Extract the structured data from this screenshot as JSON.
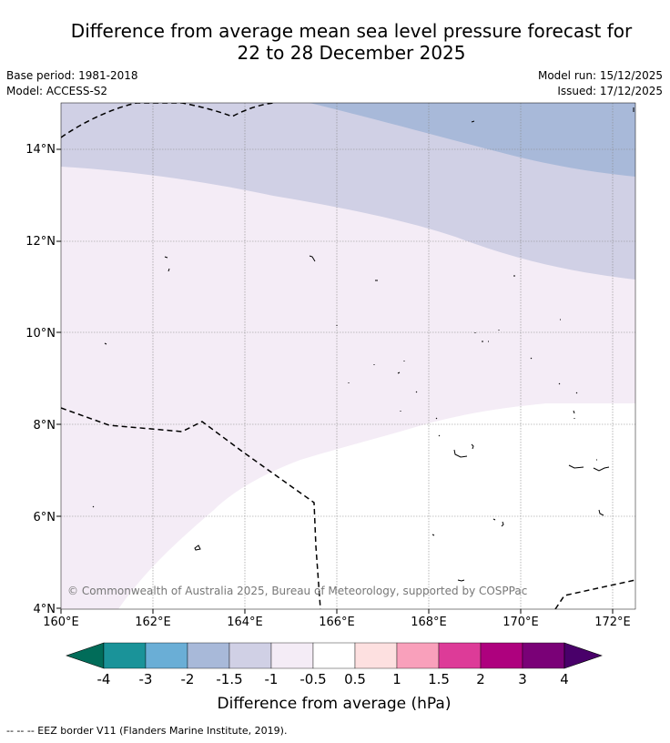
{
  "title": {
    "line1": "Difference from average mean sea level pressure forecast for",
    "line2": "22 to 28 December 2025"
  },
  "meta": {
    "base_period": "Base period: 1981-2018",
    "model": "Model: ACCESS-S2",
    "model_run": "Model run: 15/12/2025",
    "issued": "Issued: 17/12/2025"
  },
  "map": {
    "lat_labels": [
      "14°N",
      "12°N",
      "10°N",
      "8°N",
      "6°N",
      "4°N"
    ],
    "lon_labels": [
      "160°E",
      "162°E",
      "164°E",
      "166°E",
      "168°E",
      "170°E",
      "172°E"
    ],
    "extent": {
      "lon_min": 160,
      "lon_max": 172.5,
      "lat_min": 4,
      "lat_max": 15
    },
    "copyright": "© Commonwealth of Australia 2025, Bureau of Meteorology, supported by COSPPac"
  },
  "colorbar": {
    "ticks": [
      "-4",
      "-3",
      "-2",
      "-1.5",
      "-1",
      "-0.5",
      "0.5",
      "1",
      "1.5",
      "2",
      "3",
      "4"
    ],
    "colors": [
      "#1a9399",
      "#6aaed6",
      "#a8b9d9",
      "#d0d0e5",
      "#f4ecf6",
      "#ffffff",
      "#fde0e0",
      "#f9a0bb",
      "#dd3b98",
      "#ae017e",
      "#7a0177"
    ],
    "low_extend_color": "#016c59",
    "high_extend_color": "#49006a",
    "label": "Difference from average (hPa)"
  },
  "footnote": "--  --  -- EEZ border V11 (Flanders Marine Institute, 2019)."
}
